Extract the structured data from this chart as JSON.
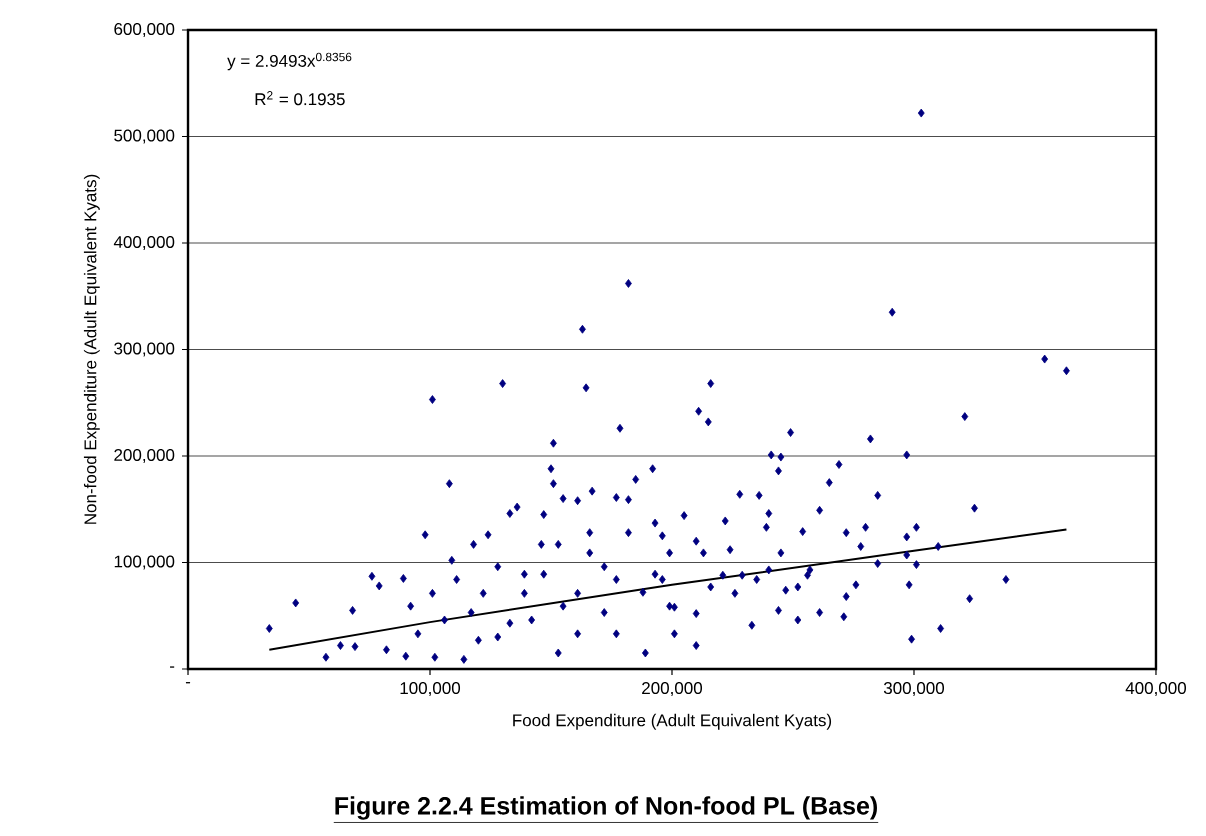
{
  "chart_data": {
    "type": "scatter",
    "title": "Figure 2.2.4 Estimation of Non-food PL (Base)",
    "xlabel": "Food Expenditure (Adult Equivalent Kyats)",
    "ylabel": "Non-food Expenditure (Adult Equivalent Kyats)",
    "annotations": [
      "y = 2.9493x$^{0.8356}$",
      "R$^{2}$ = 0.1935"
    ],
    "xlim": [
      0,
      400000
    ],
    "ylim": [
      0,
      600000
    ],
    "xticks": [
      {
        "value": 0,
        "label": "-"
      },
      {
        "value": 100000,
        "label": "100,000"
      },
      {
        "value": 200000,
        "label": "200,000"
      },
      {
        "value": 300000,
        "label": "300,000"
      },
      {
        "value": 400000,
        "label": "400,000"
      }
    ],
    "yticks": [
      {
        "value": 0,
        "label": "-"
      },
      {
        "value": 100000,
        "label": "100,000"
      },
      {
        "value": 200000,
        "label": "200,000"
      },
      {
        "value": 300000,
        "label": "300,000"
      },
      {
        "value": 400000,
        "label": "400,000"
      },
      {
        "value": 500000,
        "label": "500,000"
      },
      {
        "value": 600000,
        "label": "600,000"
      }
    ],
    "grid": "y",
    "marker": "diamond",
    "series": [
      {
        "type": "scatter",
        "color": "#000080",
        "x": [
          182000,
          163000,
          164500,
          130000,
          101000,
          178500,
          151000,
          150000,
          151000,
          108000,
          192000,
          185000,
          155000,
          161000,
          167000,
          177000,
          182000,
          133000,
          136000,
          147000,
          98000,
          124000,
          166000,
          193000,
          146000,
          153000,
          118000,
          109000,
          76000,
          79000,
          89000,
          68000,
          44500,
          33600,
          57000,
          63000,
          69000,
          82000,
          90000,
          102000,
          114000,
          95000,
          106000,
          117000,
          128000,
          133000,
          139000,
          147000,
          155000,
          161000,
          153000,
          172000,
          177000,
          188000,
          189000,
          193000,
          199000,
          199000,
          122000,
          101000,
          111000,
          92000,
          128000,
          166000,
          182000,
          172000,
          139000,
          142000,
          161000,
          177000,
          120000,
          291000,
          303000,
          354000,
          363000,
          216000,
          211000,
          215000,
          249000,
          282000,
          321000,
          297000,
          241000,
          245000,
          244000,
          269000,
          265000,
          285000,
          236000,
          228000,
          325000,
          261000,
          240000,
          222000,
          239000,
          254000,
          272000,
          280000,
          301000,
          297000,
          310000,
          297000,
          278000,
          245000,
          224000,
          210000,
          205000,
          285000,
          301000,
          338000,
          298000,
          276000,
          272000,
          323000,
          252000,
          256000,
          247000,
          235000,
          229000,
          233000,
          244000,
          252000,
          261000,
          271000,
          299000,
          311000,
          221000,
          216000,
          210000,
          210000,
          201000,
          201000,
          196000,
          196000,
          213000,
          226000,
          240000,
          257000
        ],
        "values": [
          362000,
          319000,
          264000,
          268000,
          253000,
          226000,
          212000,
          188000,
          174000,
          174000,
          188000,
          178000,
          160000,
          158000,
          167000,
          161000,
          159000,
          146000,
          152000,
          145000,
          126000,
          126000,
          128000,
          137000,
          117000,
          117000,
          117000,
          102000,
          87000,
          78000,
          85000,
          55000,
          62000,
          38000,
          11000,
          22000,
          21000,
          18000,
          12000,
          11000,
          9000,
          33000,
          46000,
          53000,
          30000,
          43000,
          71000,
          89000,
          59000,
          33000,
          15000,
          53000,
          84000,
          72000,
          15000,
          89000,
          59000,
          109000,
          71000,
          71000,
          84000,
          59000,
          96000,
          109000,
          128000,
          96000,
          89000,
          46000,
          71000,
          33000,
          27000,
          335000,
          522000,
          291000,
          280000,
          268000,
          242000,
          232000,
          222000,
          216000,
          237000,
          201000,
          201000,
          199000,
          186000,
          192000,
          175000,
          163000,
          163000,
          164000,
          151000,
          149000,
          146000,
          139000,
          133000,
          129000,
          128000,
          133000,
          133000,
          124000,
          115000,
          107000,
          115000,
          109000,
          112000,
          120000,
          144000,
          99000,
          98000,
          84000,
          79000,
          79000,
          68000,
          66000,
          77000,
          88000,
          74000,
          84000,
          88000,
          41000,
          55000,
          46000,
          53000,
          49000,
          28000,
          38000,
          88000,
          77000,
          52000,
          22000,
          58000,
          33000,
          84000,
          125000,
          109000,
          71000,
          93000,
          93000
        ]
      },
      {
        "type": "line",
        "color": "#000000",
        "marker": "none",
        "x": [
          33600,
          100000,
          200000,
          300000,
          363000
        ],
        "values": [
          18000,
          44000,
          79000,
          111000,
          131000
        ]
      }
    ]
  }
}
